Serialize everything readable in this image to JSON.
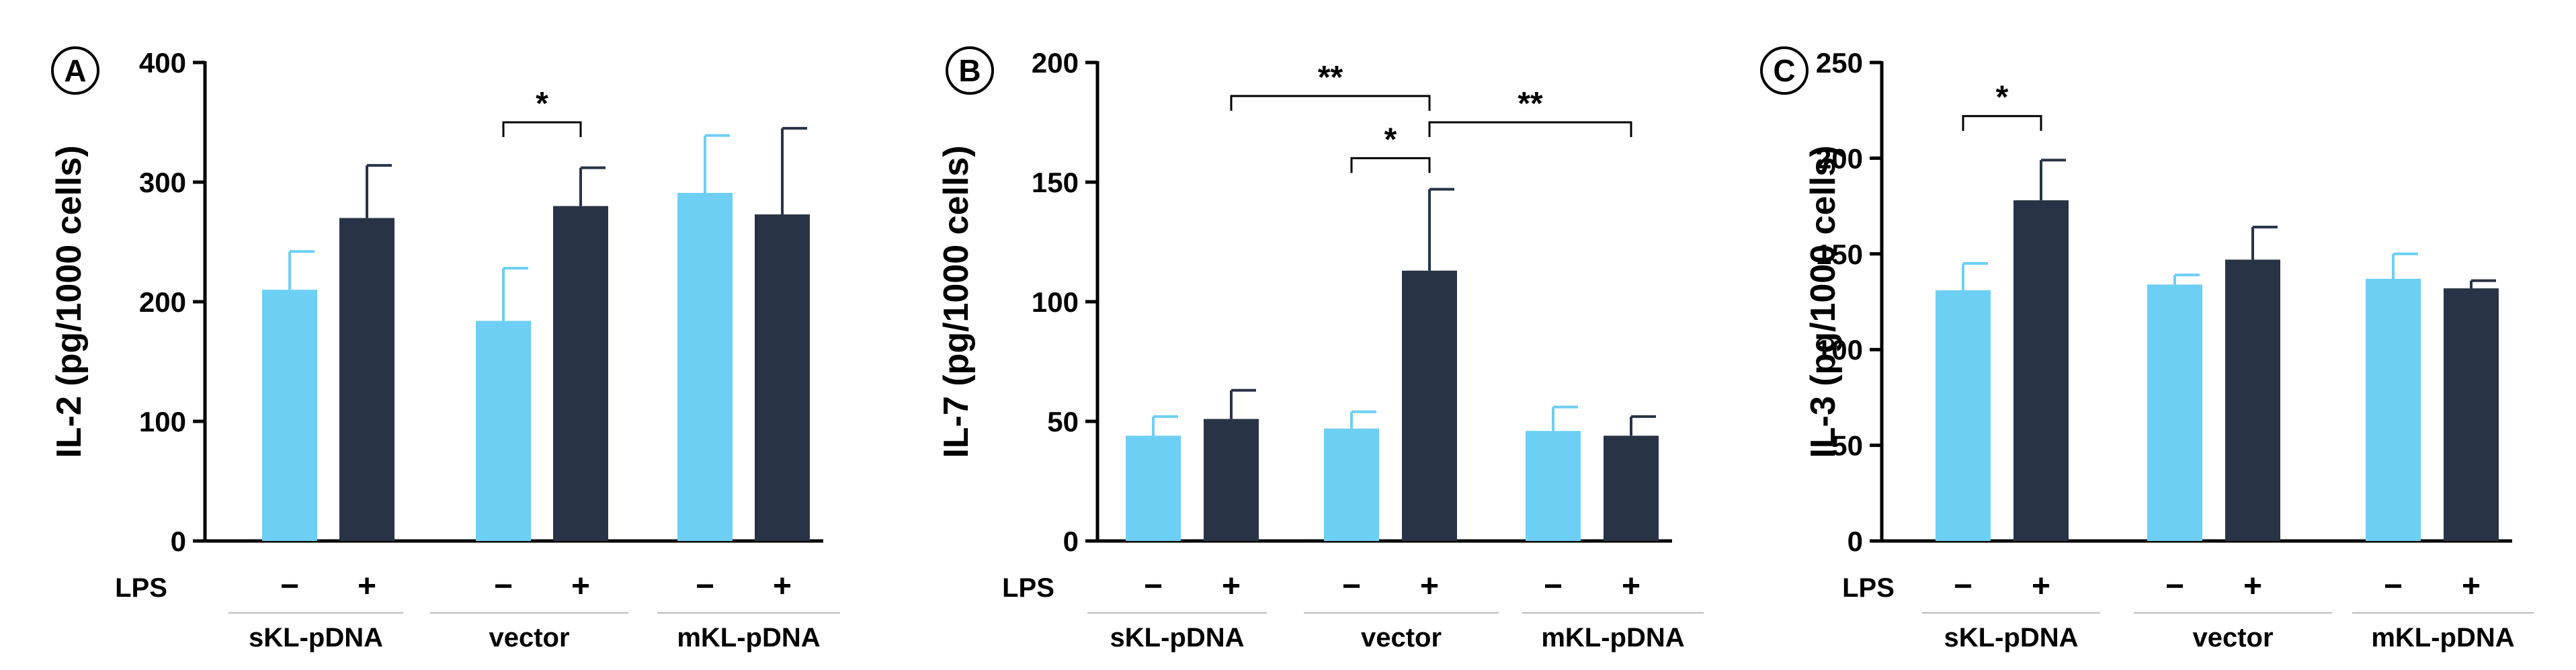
{
  "colors": {
    "minus": "#6dcff3",
    "plus": "#283345",
    "axis": "#000000",
    "divider": "#bbbbbb"
  },
  "chart_data": [
    {
      "type": "bar",
      "panel_letter": "A",
      "ylabel": "IL-2 (pg/1000 cells)",
      "ylim": [
        0,
        400
      ],
      "yticks": [
        "0",
        "100",
        "200",
        "300",
        "400"
      ],
      "lps_label": "LPS",
      "lps_states": [
        "−",
        "+"
      ],
      "groups": [
        "sKL-pDNA",
        "vector",
        "mKL-pDNA"
      ],
      "series": [
        {
          "name": "LPS −",
          "values": [
            210,
            184,
            291
          ],
          "errors": [
            32,
            44,
            48
          ]
        },
        {
          "name": "LPS +",
          "values": [
            270,
            280,
            273
          ],
          "errors": [
            44,
            32,
            72
          ]
        }
      ],
      "annotations": [
        {
          "from": [
            1,
            0
          ],
          "to": [
            1,
            1
          ],
          "level": 350,
          "label": "*"
        }
      ]
    },
    {
      "type": "bar",
      "panel_letter": "B",
      "ylabel": "IL-7 (pg/1000 cells)",
      "ylim": [
        0,
        200
      ],
      "yticks": [
        "0",
        "50",
        "100",
        "150",
        "200"
      ],
      "lps_label": "LPS",
      "lps_states": [
        "−",
        "+"
      ],
      "groups": [
        "sKL-pDNA",
        "vector",
        "mKL-pDNA"
      ],
      "series": [
        {
          "name": "LPS −",
          "values": [
            44,
            47,
            46
          ],
          "errors": [
            8,
            7,
            10
          ]
        },
        {
          "name": "LPS +",
          "values": [
            51,
            113,
            44
          ],
          "errors": [
            12,
            34,
            8
          ]
        }
      ],
      "annotations": [
        {
          "from": [
            0,
            1
          ],
          "to": [
            1,
            1
          ],
          "level": 186,
          "label": "**"
        },
        {
          "from": [
            1,
            1
          ],
          "to": [
            2,
            1
          ],
          "level": 175,
          "label": "**"
        },
        {
          "from": [
            1,
            0
          ],
          "to": [
            1,
            1
          ],
          "level": 160,
          "label": "*"
        }
      ]
    },
    {
      "type": "bar",
      "panel_letter": "C",
      "ylabel": "IL-3 (pg/1000 cells)",
      "ylim": [
        0,
        250
      ],
      "yticks": [
        "0",
        "50",
        "100",
        "150",
        "200",
        "250"
      ],
      "lps_label": "LPS",
      "lps_states": [
        "−",
        "+"
      ],
      "groups": [
        "sKL-pDNA",
        "vector",
        "mKL-pDNA"
      ],
      "series": [
        {
          "name": "LPS −",
          "values": [
            131,
            134,
            137
          ],
          "errors": [
            14,
            5,
            13
          ]
        },
        {
          "name": "LPS +",
          "values": [
            178,
            147,
            132
          ],
          "errors": [
            21,
            17,
            4
          ]
        }
      ],
      "annotations": [
        {
          "from": [
            0,
            0
          ],
          "to": [
            0,
            1
          ],
          "level": 222,
          "label": "*"
        }
      ]
    }
  ]
}
